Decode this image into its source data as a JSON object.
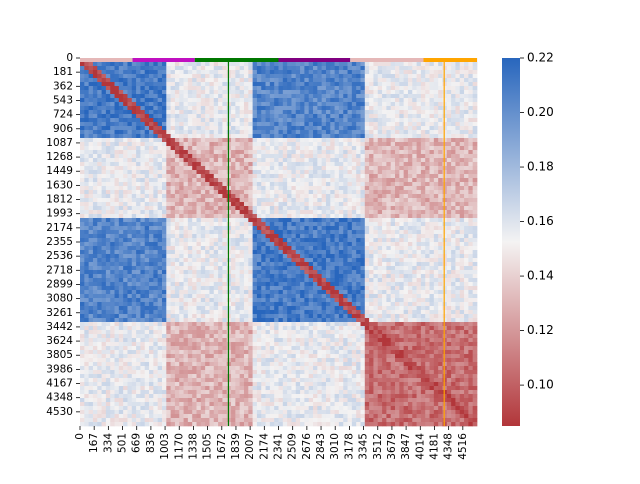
{
  "chart_data": {
    "type": "heatmap",
    "title": "",
    "xlabel": "",
    "ylabel": "",
    "matrix_size": 4600,
    "x_tick_labels": [
      "0",
      "167",
      "334",
      "501",
      "669",
      "836",
      "1003",
      "1170",
      "1338",
      "1505",
      "1672",
      "1839",
      "2007",
      "2174",
      "2341",
      "2509",
      "2676",
      "2843",
      "3010",
      "3178",
      "3345",
      "3512",
      "3679",
      "3847",
      "4014",
      "4181",
      "4348",
      "4516"
    ],
    "y_tick_labels": [
      "0",
      "181",
      "362",
      "543",
      "724",
      "906",
      "1087",
      "1268",
      "1449",
      "1630",
      "1812",
      "1993",
      "2174",
      "2355",
      "2536",
      "2718",
      "2899",
      "3080",
      "3261",
      "3442",
      "3624",
      "3805",
      "3986",
      "4167",
      "4348",
      "4530"
    ],
    "colorbar": {
      "min": 0.085,
      "max": 0.22,
      "ticks": [
        "0.10",
        "0.12",
        "0.14",
        "0.16",
        "0.18",
        "0.20",
        "0.22"
      ],
      "tick_values": [
        0.1,
        0.12,
        0.14,
        0.16,
        0.18,
        0.2,
        0.22
      ],
      "low_color": "#b2363a",
      "mid_color": "#f4f3f3",
      "high_color": "#2866bd"
    },
    "domain_blocks": [
      {
        "start": 0,
        "end": 1000,
        "value": 0.21
      },
      {
        "start": 1000,
        "end": 2000,
        "value": 0.13
      },
      {
        "start": 2000,
        "end": 3320,
        "value": 0.21
      },
      {
        "start": 3320,
        "end": 4600,
        "value": 0.105
      }
    ],
    "top_segments": [
      {
        "start": 0,
        "end": 610,
        "color": "#e5b8b8"
      },
      {
        "start": 610,
        "end": 1330,
        "color": "#c010c0"
      },
      {
        "start": 1330,
        "end": 2300,
        "color": "#007700"
      },
      {
        "start": 2300,
        "end": 3130,
        "color": "#800080"
      },
      {
        "start": 3130,
        "end": 3980,
        "color": "#e5b8b8"
      },
      {
        "start": 3980,
        "end": 4600,
        "color": "#ffa500"
      }
    ],
    "vertical_lines": [
      {
        "x": 1720,
        "color": "#007700"
      },
      {
        "x": 4220,
        "color": "#ffa500"
      }
    ]
  }
}
